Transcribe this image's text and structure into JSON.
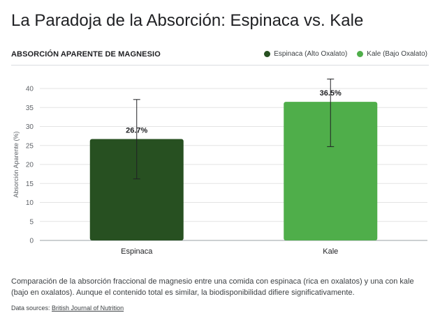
{
  "header": {
    "title": "La Paradoja de la Absorción: Espinaca vs. Kale",
    "subtitle": "ABSORCIÓN APARENTE DE MAGNESIO"
  },
  "legend": [
    {
      "label": "Espinaca (Alto Oxalato)",
      "color": "#275021"
    },
    {
      "label": "Kale (Bajo Oxalato)",
      "color": "#4fae4a"
    }
  ],
  "chart_data": {
    "type": "bar",
    "title": "ABSORCIÓN APARENTE DE MAGNESIO",
    "xlabel": "",
    "ylabel": "Absorción Aparente (%)",
    "categories": [
      "Espinaca",
      "Kale"
    ],
    "values": [
      26.7,
      36.5
    ],
    "value_labels": [
      "26.7%",
      "36.5%"
    ],
    "error_bars": [
      {
        "low": 16.2,
        "high": 37.1
      },
      {
        "low": 24.7,
        "high": 42.5
      }
    ],
    "colors": [
      "#275021",
      "#4fae4a"
    ],
    "ylim": [
      0,
      40
    ],
    "yticks": [
      0,
      5,
      10,
      15,
      20,
      25,
      30,
      35,
      40
    ],
    "grid": true,
    "legend_position": "top-right"
  },
  "footer": {
    "description": "Comparación de la absorción fraccional de magnesio entre una comida con espinaca (rica en oxalatos) y una con kale (bajo en oxalatos). Aunque el contenido total es similar, la biodisponibilidad difiere significativamente.",
    "source_prefix": "Data sources:",
    "source_link": "British Journal of Nutrition"
  }
}
